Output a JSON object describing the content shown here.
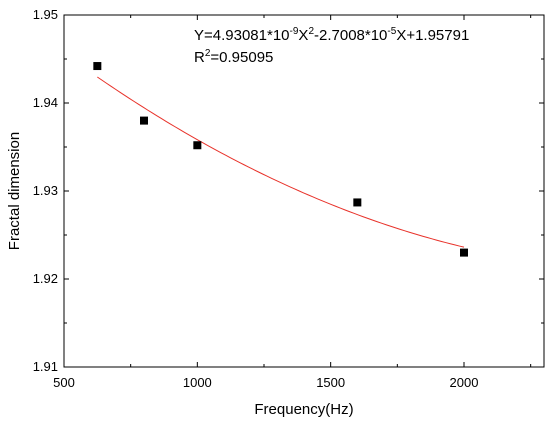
{
  "chart_data": {
    "type": "scatter",
    "title": "",
    "xlabel": "Frequency(Hz)",
    "ylabel": "Fractal dimension",
    "xlim": [
      500,
      2300
    ],
    "ylim": [
      1.91,
      1.95
    ],
    "xticks": [
      500,
      1000,
      1500,
      2000
    ],
    "xtick_labels": [
      "500",
      "1000",
      "1500",
      "2000"
    ],
    "yticks": [
      1.91,
      1.92,
      1.93,
      1.94,
      1.95
    ],
    "ytick_labels": [
      "1.91",
      "1.92",
      "1.93",
      "1.94",
      "1.95"
    ],
    "grid": false,
    "legend": "none",
    "series": [
      {
        "x": [
          625,
          800,
          1000,
          1600,
          2000
        ],
        "y": [
          1.9442,
          1.938,
          1.9352,
          1.9287,
          1.923
        ],
        "marker": "square",
        "color": "#000000"
      }
    ],
    "fit": {
      "type": "quadratic",
      "a": 4.93081e-09,
      "b": -2.7008e-05,
      "c": 1.95791,
      "x_range": [
        625,
        2000
      ],
      "color": "#e8322a"
    },
    "annotation": {
      "equation_parts": [
        "Y=4.93081*10",
        "-9",
        "X",
        "2",
        "-2.7008*10",
        "-5",
        "X+1.95791"
      ],
      "r2_parts": [
        "R",
        "2",
        "=0.95095"
      ]
    }
  }
}
